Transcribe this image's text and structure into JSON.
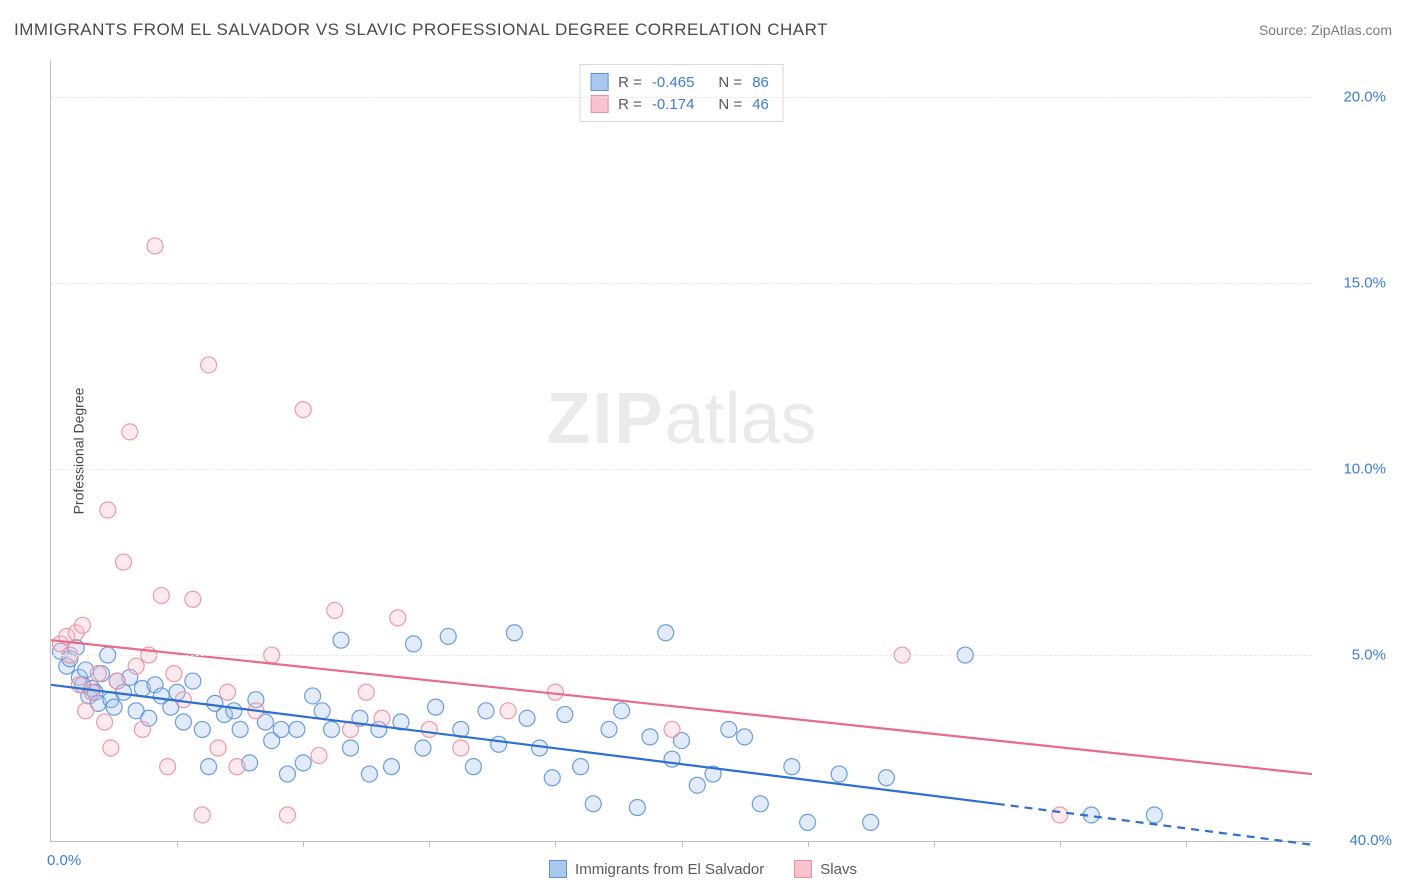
{
  "title": "IMMIGRANTS FROM EL SALVADOR VS SLAVIC PROFESSIONAL DEGREE CORRELATION CHART",
  "source_label": "Source: ",
  "source_value": "ZipAtlas.com",
  "watermark_zip": "ZIP",
  "watermark_atlas": "atlas",
  "chart": {
    "type": "scatter",
    "x_axis": {
      "min": 0.0,
      "max": 40.0,
      "origin_label": "0.0%",
      "max_label": "40.0%",
      "tick_positions_pct": [
        10,
        20,
        30,
        40,
        50,
        60,
        70,
        80,
        90
      ]
    },
    "y_axis": {
      "title": "Professional Degree",
      "min": 0.0,
      "max": 21.0,
      "ticks": [
        {
          "value": 5.0,
          "label": "5.0%"
        },
        {
          "value": 10.0,
          "label": "10.0%"
        },
        {
          "value": 15.0,
          "label": "15.0%"
        },
        {
          "value": 20.0,
          "label": "20.0%"
        }
      ]
    },
    "background_color": "#ffffff",
    "grid_color": "#e8e8e8",
    "axis_color": "#c0c0c0",
    "tick_label_color": "#3b7dd8",
    "marker_radius": 8,
    "marker_opacity": 0.35,
    "series": [
      {
        "name": "Immigrants from El Salvador",
        "fill": "#a9c7ef",
        "stroke": "#5b94dd",
        "trend_color": "#2e6fd0",
        "R_label": "R = ",
        "R_value": "-0.465",
        "N_label": "N = ",
        "N_value": "86",
        "trend": {
          "x1": 0.0,
          "y1": 4.2,
          "x2_solid": 30.0,
          "y2_solid": 1.0,
          "x2_dash": 40.0,
          "y2_dash": -0.1
        },
        "points": [
          [
            0.3,
            5.1
          ],
          [
            0.5,
            4.7
          ],
          [
            0.6,
            4.9
          ],
          [
            0.8,
            5.2
          ],
          [
            0.9,
            4.4
          ],
          [
            1.0,
            4.2
          ],
          [
            1.1,
            4.6
          ],
          [
            1.2,
            3.9
          ],
          [
            1.3,
            4.1
          ],
          [
            1.4,
            4.0
          ],
          [
            1.5,
            3.7
          ],
          [
            1.6,
            4.5
          ],
          [
            1.8,
            5.0
          ],
          [
            1.9,
            3.8
          ],
          [
            2.0,
            3.6
          ],
          [
            2.1,
            4.3
          ],
          [
            2.3,
            4.0
          ],
          [
            2.5,
            4.4
          ],
          [
            2.7,
            3.5
          ],
          [
            2.9,
            4.1
          ],
          [
            3.1,
            3.3
          ],
          [
            3.3,
            4.2
          ],
          [
            3.5,
            3.9
          ],
          [
            3.8,
            3.6
          ],
          [
            4.0,
            4.0
          ],
          [
            4.2,
            3.2
          ],
          [
            4.5,
            4.3
          ],
          [
            4.8,
            3.0
          ],
          [
            5.0,
            2.0
          ],
          [
            5.2,
            3.7
          ],
          [
            5.5,
            3.4
          ],
          [
            5.8,
            3.5
          ],
          [
            6.0,
            3.0
          ],
          [
            6.3,
            2.1
          ],
          [
            6.5,
            3.8
          ],
          [
            6.8,
            3.2
          ],
          [
            7.0,
            2.7
          ],
          [
            7.3,
            3.0
          ],
          [
            7.5,
            1.8
          ],
          [
            7.8,
            3.0
          ],
          [
            8.0,
            2.1
          ],
          [
            8.3,
            3.9
          ],
          [
            8.6,
            3.5
          ],
          [
            8.9,
            3.0
          ],
          [
            9.2,
            5.4
          ],
          [
            9.5,
            2.5
          ],
          [
            9.8,
            3.3
          ],
          [
            10.1,
            1.8
          ],
          [
            10.4,
            3.0
          ],
          [
            10.8,
            2.0
          ],
          [
            11.1,
            3.2
          ],
          [
            11.5,
            5.3
          ],
          [
            11.8,
            2.5
          ],
          [
            12.2,
            3.6
          ],
          [
            12.6,
            5.5
          ],
          [
            13.0,
            3.0
          ],
          [
            13.4,
            2.0
          ],
          [
            13.8,
            3.5
          ],
          [
            14.2,
            2.6
          ],
          [
            14.7,
            5.6
          ],
          [
            15.1,
            3.3
          ],
          [
            15.5,
            2.5
          ],
          [
            15.9,
            1.7
          ],
          [
            16.3,
            3.4
          ],
          [
            16.8,
            2.0
          ],
          [
            17.2,
            1.0
          ],
          [
            17.7,
            3.0
          ],
          [
            18.1,
            3.5
          ],
          [
            18.6,
            0.9
          ],
          [
            19.0,
            2.8
          ],
          [
            19.5,
            5.6
          ],
          [
            19.7,
            2.2
          ],
          [
            20.0,
            2.7
          ],
          [
            20.5,
            1.5
          ],
          [
            21.0,
            1.8
          ],
          [
            21.5,
            3.0
          ],
          [
            22.0,
            2.8
          ],
          [
            22.5,
            1.0
          ],
          [
            23.5,
            2.0
          ],
          [
            24.0,
            0.5
          ],
          [
            25.0,
            1.8
          ],
          [
            26.0,
            0.5
          ],
          [
            26.5,
            1.7
          ],
          [
            29.0,
            5.0
          ],
          [
            33.0,
            0.7
          ],
          [
            35.0,
            0.7
          ]
        ]
      },
      {
        "name": "Slavs",
        "fill": "#f7c4ce",
        "stroke": "#ec8fa2",
        "trend_color": "#e86b88",
        "R_label": "R = ",
        "R_value": "-0.174",
        "N_label": "N = ",
        "N_value": "46",
        "trend": {
          "x1": 0.0,
          "y1": 5.4,
          "x2_solid": 40.0,
          "y2_solid": 1.8,
          "x2_dash": 40.0,
          "y2_dash": 1.8
        },
        "points": [
          [
            0.3,
            5.3
          ],
          [
            0.5,
            5.5
          ],
          [
            0.6,
            5.0
          ],
          [
            0.8,
            5.6
          ],
          [
            0.9,
            4.2
          ],
          [
            1.0,
            5.8
          ],
          [
            1.1,
            3.5
          ],
          [
            1.3,
            4.0
          ],
          [
            1.5,
            4.5
          ],
          [
            1.7,
            3.2
          ],
          [
            1.8,
            8.9
          ],
          [
            1.9,
            2.5
          ],
          [
            2.1,
            4.3
          ],
          [
            2.3,
            7.5
          ],
          [
            2.5,
            11.0
          ],
          [
            2.7,
            4.7
          ],
          [
            2.9,
            3.0
          ],
          [
            3.1,
            5.0
          ],
          [
            3.3,
            16.0
          ],
          [
            3.5,
            6.6
          ],
          [
            3.7,
            2.0
          ],
          [
            3.9,
            4.5
          ],
          [
            4.2,
            3.8
          ],
          [
            4.5,
            6.5
          ],
          [
            4.8,
            0.7
          ],
          [
            5.0,
            12.8
          ],
          [
            5.3,
            2.5
          ],
          [
            5.6,
            4.0
          ],
          [
            5.9,
            2.0
          ],
          [
            6.5,
            3.5
          ],
          [
            7.0,
            5.0
          ],
          [
            7.5,
            0.7
          ],
          [
            8.0,
            11.6
          ],
          [
            8.5,
            2.3
          ],
          [
            9.0,
            6.2
          ],
          [
            9.5,
            3.0
          ],
          [
            10.0,
            4.0
          ],
          [
            10.5,
            3.3
          ],
          [
            11.0,
            6.0
          ],
          [
            12.0,
            3.0
          ],
          [
            13.0,
            2.5
          ],
          [
            14.5,
            3.5
          ],
          [
            16.0,
            4.0
          ],
          [
            19.7,
            3.0
          ],
          [
            27.0,
            5.0
          ],
          [
            32.0,
            0.7
          ]
        ]
      }
    ],
    "legend_bottom": [
      {
        "swatch_fill": "#a9c7ef",
        "swatch_stroke": "#5b94dd",
        "label": "Immigrants from El Salvador"
      },
      {
        "swatch_fill": "#f7c4ce",
        "swatch_stroke": "#ec8fa2",
        "label": "Slavs"
      }
    ]
  }
}
